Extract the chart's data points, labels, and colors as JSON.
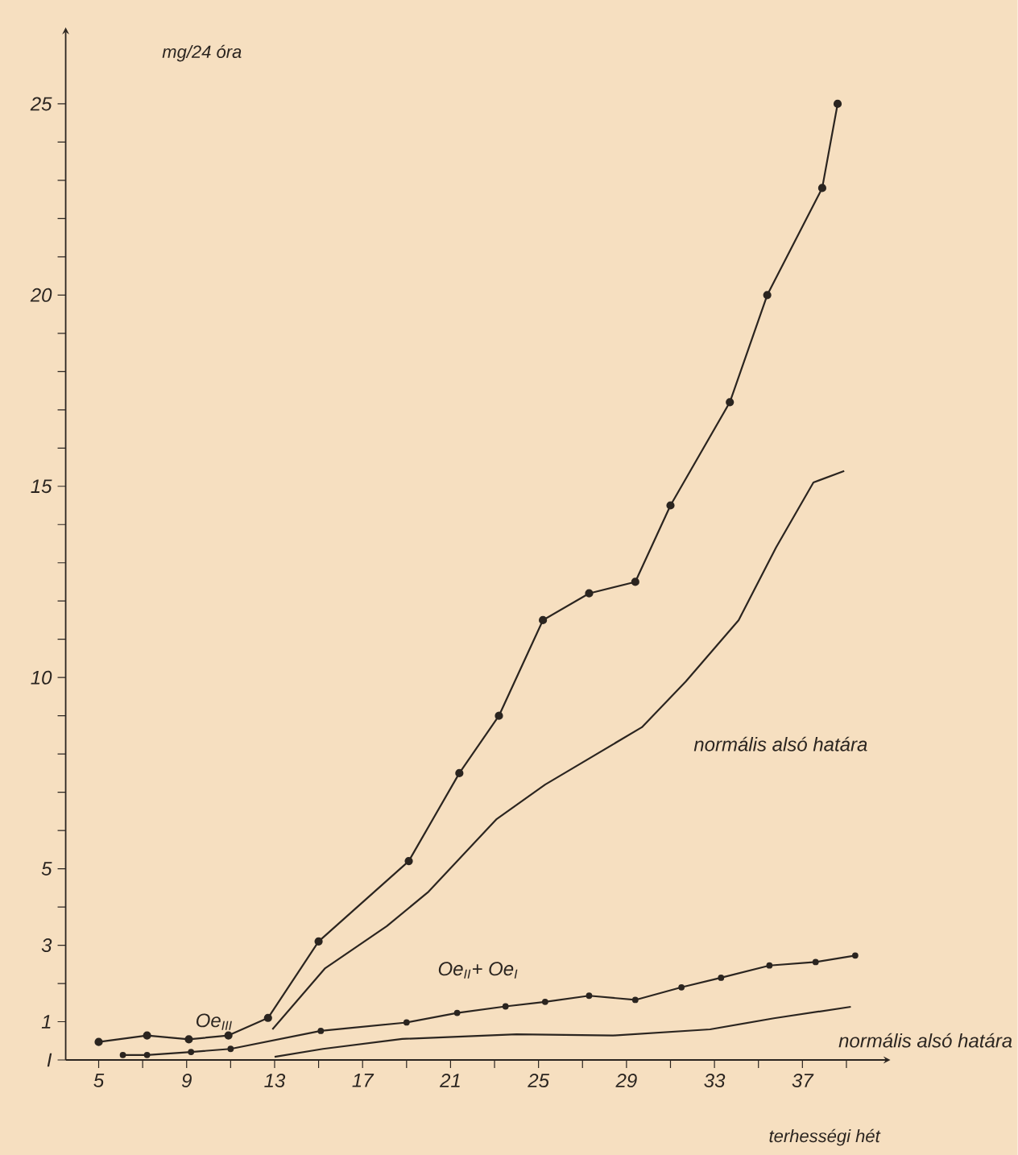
{
  "chart_data": {
    "type": "line",
    "xlabel": "terhességi hét",
    "ylabel": "mg/24 óra",
    "xlim": [
      3.5,
      41
    ],
    "ylim": [
      0,
      27
    ],
    "xticks": [
      5,
      {
        "value": 7,
        "label": null
      },
      9,
      {
        "value": 11,
        "label": null
      },
      13,
      {
        "value": 15,
        "label": null
      },
      17,
      {
        "value": 19,
        "label": null
      },
      21,
      {
        "value": 23,
        "label": null
      },
      25,
      {
        "value": 27,
        "label": null
      },
      29,
      {
        "value": 31,
        "label": null
      },
      33,
      {
        "value": 35,
        "label": null
      },
      37,
      {
        "value": 39,
        "label": null
      }
    ],
    "yticks": [
      {
        "value": 0,
        "label": "I"
      },
      1,
      {
        "value": 2,
        "label": null
      },
      3,
      {
        "value": 4,
        "label": null
      },
      5,
      {
        "value": 6,
        "label": null
      },
      {
        "value": 7,
        "label": null
      },
      {
        "value": 8,
        "label": null
      },
      {
        "value": 9,
        "label": null
      },
      10,
      {
        "value": 11,
        "label": null
      },
      {
        "value": 12,
        "label": null
      },
      {
        "value": 13,
        "label": null
      },
      {
        "value": 14,
        "label": null
      },
      15,
      {
        "value": 16,
        "label": null
      },
      {
        "value": 17,
        "label": null
      },
      {
        "value": 18,
        "label": null
      },
      {
        "value": 19,
        "label": null
      },
      20,
      {
        "value": 21,
        "label": null
      },
      {
        "value": 22,
        "label": null
      },
      {
        "value": 23,
        "label": null
      },
      {
        "value": 24,
        "label": null
      },
      25
    ],
    "series": [
      {
        "name": "Oe$_{III}$",
        "color": "#2b2520",
        "marker": "circle",
        "x": [
          5,
          7.2,
          9.1,
          10.9,
          12.7,
          15,
          19.1,
          21.4,
          23.2,
          25.2,
          27.3,
          29.4,
          31,
          33.7,
          35.4,
          37.9,
          38.6
        ],
        "values": [
          0.47,
          0.64,
          0.54,
          0.64,
          1.1,
          3.1,
          5.2,
          7.5,
          9,
          11.5,
          12.2,
          12.5,
          14.5,
          17.2,
          20,
          22.8,
          25
        ]
      },
      {
        "name": "Oe$_{II}$+ Oe$_{I}$",
        "color": "#2b2520",
        "marker": "circle",
        "x": [
          6.1,
          7.2,
          9.2,
          11,
          15.1,
          19,
          21.3,
          23.5,
          25.3,
          27.3,
          29.4,
          31.5,
          33.3,
          35.5,
          37.6,
          39.4
        ],
        "values": [
          0.13,
          0.13,
          0.21,
          0.29,
          0.76,
          0.98,
          1.23,
          1.4,
          1.52,
          1.68,
          1.57,
          1.9,
          2.15,
          2.47,
          2.56,
          2.73
        ]
      },
      {
        "name": "normális alsó határa",
        "color": "#2b2520",
        "marker": "none",
        "x": [
          12.9,
          15.3,
          18.1,
          20,
          23.1,
          25.3,
          29.7,
          31.7,
          34.1,
          35.8,
          37.5,
          38.9
        ],
        "values": [
          0.8,
          2.4,
          3.5,
          4.4,
          6.3,
          7.2,
          8.7,
          9.9,
          11.5,
          13.4,
          15.1,
          15.4
        ]
      },
      {
        "name": "normális alsó határa",
        "color": "#2b2520",
        "marker": "none",
        "x": [
          13,
          15.2,
          18.8,
          24,
          28.4,
          32.8,
          35.7,
          39.2
        ],
        "values": [
          0.08,
          0.29,
          0.55,
          0.67,
          0.64,
          0.8,
          1.09,
          1.39
        ]
      }
    ]
  }
}
